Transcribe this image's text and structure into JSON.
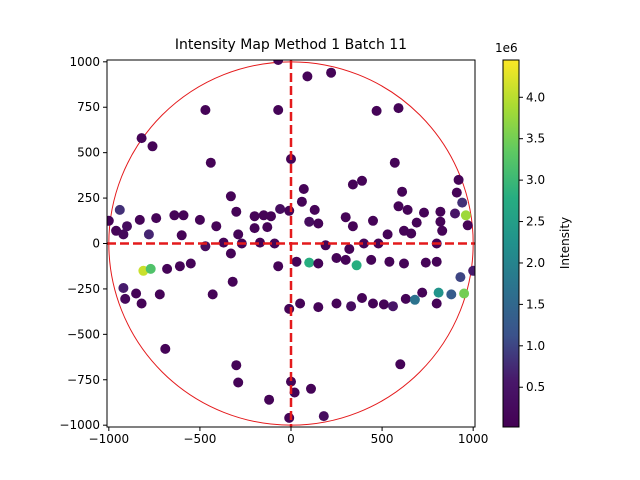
{
  "chart_data": {
    "type": "scatter",
    "title": "Intensity Map Method 1 Batch 11",
    "xlabel": "",
    "ylabel": "",
    "xlim": [
      -1010,
      1010
    ],
    "ylim": [
      -1010,
      1010
    ],
    "xticks": [
      -1000,
      -500,
      0,
      500,
      1000
    ],
    "yticks": [
      -1000,
      -750,
      -500,
      -250,
      0,
      250,
      500,
      750,
      1000
    ],
    "xtick_labels": [
      "−1000",
      "−500",
      "0",
      "500",
      "1000"
    ],
    "ytick_labels": [
      "−1000",
      "−750",
      "−500",
      "−250",
      "0",
      "250",
      "500",
      "750",
      "1000"
    ],
    "circle_radius": 1000,
    "circle_color": "#e41a1c",
    "crosshair_color": "#e41a1c",
    "colorbar": {
      "label": "Intensity",
      "exponent_label": "1e6",
      "min": 0.02,
      "max": 4.45,
      "ticks": [
        0.5,
        1.0,
        1.5,
        2.0,
        2.5,
        3.0,
        3.5,
        4.0
      ],
      "tick_labels": [
        "0.5",
        "1.0",
        "1.5",
        "2.0",
        "2.5",
        "3.0",
        "3.5",
        "4.0"
      ],
      "colormap": "viridis"
    },
    "points": [
      {
        "x": -1000,
        "y": 125,
        "v": 0.1
      },
      {
        "x": -960,
        "y": 70,
        "v": 0.1
      },
      {
        "x": -940,
        "y": 185,
        "v": 0.8
      },
      {
        "x": -920,
        "y": 50,
        "v": 0.2
      },
      {
        "x": -900,
        "y": 95,
        "v": 0.3
      },
      {
        "x": -830,
        "y": 130,
        "v": 0.1
      },
      {
        "x": -780,
        "y": 50,
        "v": 0.7
      },
      {
        "x": -740,
        "y": 140,
        "v": 0.1
      },
      {
        "x": -640,
        "y": 155,
        "v": 0.1
      },
      {
        "x": -590,
        "y": 155,
        "v": 0.1
      },
      {
        "x": -600,
        "y": 45,
        "v": 0.1
      },
      {
        "x": -500,
        "y": 130,
        "v": 0.1
      },
      {
        "x": -470,
        "y": -15,
        "v": 0.3
      },
      {
        "x": -410,
        "y": 95,
        "v": 0.1
      },
      {
        "x": -370,
        "y": 5,
        "v": 0.1
      },
      {
        "x": -330,
        "y": 260,
        "v": 0.1
      },
      {
        "x": -300,
        "y": 175,
        "v": 0.1
      },
      {
        "x": -290,
        "y": 50,
        "v": 0.1
      },
      {
        "x": -270,
        "y": 0,
        "v": 0.1
      },
      {
        "x": -200,
        "y": 150,
        "v": 0.1
      },
      {
        "x": -170,
        "y": 5,
        "v": 0.1
      },
      {
        "x": -150,
        "y": 155,
        "v": 0.1
      },
      {
        "x": -110,
        "y": 150,
        "v": 0.1
      },
      {
        "x": -90,
        "y": 0,
        "v": 0.1
      },
      {
        "x": -60,
        "y": 190,
        "v": 0.3
      },
      {
        "x": -130,
        "y": 90,
        "v": 0.1
      },
      {
        "x": -200,
        "y": 85,
        "v": 0.1
      },
      {
        "x": -330,
        "y": -55,
        "v": 0.1
      },
      {
        "x": -10,
        "y": 180,
        "v": 0.1
      },
      {
        "x": 60,
        "y": 230,
        "v": 0.1
      },
      {
        "x": 70,
        "y": 300,
        "v": 0.1
      },
      {
        "x": 100,
        "y": 120,
        "v": 0.3
      },
      {
        "x": 130,
        "y": 185,
        "v": 0.1
      },
      {
        "x": 150,
        "y": 110,
        "v": 0.1
      },
      {
        "x": 190,
        "y": -10,
        "v": 0.1
      },
      {
        "x": 300,
        "y": 145,
        "v": 0.1
      },
      {
        "x": 320,
        "y": -30,
        "v": 0.1
      },
      {
        "x": 340,
        "y": 95,
        "v": 0.1
      },
      {
        "x": 340,
        "y": 325,
        "v": 0.1
      },
      {
        "x": 390,
        "y": 345,
        "v": 0.1
      },
      {
        "x": 400,
        "y": 0,
        "v": 0.1
      },
      {
        "x": 450,
        "y": 125,
        "v": 0.1
      },
      {
        "x": 480,
        "y": 0,
        "v": 0.1
      },
      {
        "x": 530,
        "y": 50,
        "v": 0.1
      },
      {
        "x": 570,
        "y": 445,
        "v": 0.1
      },
      {
        "x": 590,
        "y": 205,
        "v": 0.1
      },
      {
        "x": 610,
        "y": 285,
        "v": 0.1
      },
      {
        "x": 620,
        "y": 70,
        "v": 0.1
      },
      {
        "x": 640,
        "y": 185,
        "v": 0.1
      },
      {
        "x": 660,
        "y": 55,
        "v": 0.1
      },
      {
        "x": 690,
        "y": 115,
        "v": 0.1
      },
      {
        "x": 730,
        "y": 170,
        "v": 0.1
      },
      {
        "x": 800,
        "y": 0,
        "v": 0.1
      },
      {
        "x": 820,
        "y": 175,
        "v": 0.1
      },
      {
        "x": 820,
        "y": 120,
        "v": 0.1
      },
      {
        "x": 830,
        "y": 70,
        "v": 0.1
      },
      {
        "x": 900,
        "y": 165,
        "v": 0.5
      },
      {
        "x": 910,
        "y": 280,
        "v": 0.1
      },
      {
        "x": 920,
        "y": 350,
        "v": 0.1
      },
      {
        "x": 940,
        "y": 225,
        "v": 0.8
      },
      {
        "x": 960,
        "y": 155,
        "v": 3.8
      },
      {
        "x": 970,
        "y": 100,
        "v": 0.1
      },
      {
        "x": -810,
        "y": -150,
        "v": 4.1
      },
      {
        "x": -770,
        "y": -140,
        "v": 3.2
      },
      {
        "x": -920,
        "y": -245,
        "v": 0.6
      },
      {
        "x": -910,
        "y": -305,
        "v": 0.2
      },
      {
        "x": -850,
        "y": -275,
        "v": 0.1
      },
      {
        "x": -820,
        "y": -330,
        "v": 0.1
      },
      {
        "x": -720,
        "y": -280,
        "v": 0.1
      },
      {
        "x": -680,
        "y": -140,
        "v": 0.1
      },
      {
        "x": -610,
        "y": -125,
        "v": 0.1
      },
      {
        "x": -550,
        "y": -110,
        "v": 0.1
      },
      {
        "x": -430,
        "y": -280,
        "v": 0.1
      },
      {
        "x": -320,
        "y": -210,
        "v": 0.1
      },
      {
        "x": -690,
        "y": -580,
        "v": 0.1
      },
      {
        "x": -300,
        "y": -670,
        "v": 0.1
      },
      {
        "x": -290,
        "y": -765,
        "v": 0.1
      },
      {
        "x": -120,
        "y": -860,
        "v": 0.1
      },
      {
        "x": -70,
        "y": -125,
        "v": 0.1
      },
      {
        "x": -10,
        "y": -360,
        "v": 0.1
      },
      {
        "x": 30,
        "y": -100,
        "v": 0.1
      },
      {
        "x": 50,
        "y": -330,
        "v": 0.1
      },
      {
        "x": 100,
        "y": -105,
        "v": 2.8
      },
      {
        "x": 150,
        "y": -110,
        "v": 0.1
      },
      {
        "x": 150,
        "y": -350,
        "v": 0.1
      },
      {
        "x": 250,
        "y": -80,
        "v": 0.1
      },
      {
        "x": 250,
        "y": -330,
        "v": 0.1
      },
      {
        "x": 300,
        "y": -90,
        "v": 0.1
      },
      {
        "x": 330,
        "y": -345,
        "v": 0.3
      },
      {
        "x": 360,
        "y": -120,
        "v": 2.8
      },
      {
        "x": 390,
        "y": -300,
        "v": 0.1
      },
      {
        "x": 440,
        "y": -90,
        "v": 0.1
      },
      {
        "x": 450,
        "y": -330,
        "v": 0.1
      },
      {
        "x": 510,
        "y": -335,
        "v": 0.1
      },
      {
        "x": 540,
        "y": -100,
        "v": 0.1
      },
      {
        "x": 560,
        "y": -345,
        "v": 0.5
      },
      {
        "x": 620,
        "y": -110,
        "v": 0.1
      },
      {
        "x": 630,
        "y": -305,
        "v": 0.1
      },
      {
        "x": 680,
        "y": -310,
        "v": 1.7
      },
      {
        "x": 720,
        "y": -270,
        "v": 0.1
      },
      {
        "x": 740,
        "y": -105,
        "v": 0.1
      },
      {
        "x": 800,
        "y": -100,
        "v": 0.1
      },
      {
        "x": 800,
        "y": -330,
        "v": 0.1
      },
      {
        "x": 810,
        "y": -270,
        "v": 2.3
      },
      {
        "x": 880,
        "y": -280,
        "v": 1.3
      },
      {
        "x": 930,
        "y": -185,
        "v": 1.0
      },
      {
        "x": 950,
        "y": -275,
        "v": 3.5
      },
      {
        "x": 1000,
        "y": -150,
        "v": 0.6
      },
      {
        "x": 600,
        "y": -665,
        "v": 0.1
      },
      {
        "x": 0,
        "y": -760,
        "v": 0.1
      },
      {
        "x": 20,
        "y": -820,
        "v": 0.1
      },
      {
        "x": 110,
        "y": -800,
        "v": 0.1
      },
      {
        "x": -10,
        "y": -960,
        "v": 0.1
      },
      {
        "x": 180,
        "y": -950,
        "v": 0.3
      },
      {
        "x": 0,
        "y": 465,
        "v": 0.1
      },
      {
        "x": -470,
        "y": 735,
        "v": 0.1
      },
      {
        "x": -440,
        "y": 445,
        "v": 0.1
      },
      {
        "x": -820,
        "y": 580,
        "v": 0.1
      },
      {
        "x": -760,
        "y": 535,
        "v": 0.1
      },
      {
        "x": -70,
        "y": 735,
        "v": 0.1
      },
      {
        "x": -70,
        "y": 1010,
        "v": 0.1
      },
      {
        "x": 90,
        "y": 920,
        "v": 0.1
      },
      {
        "x": 220,
        "y": 940,
        "v": 0.1
      },
      {
        "x": 470,
        "y": 730,
        "v": 0.1
      },
      {
        "x": 590,
        "y": 745,
        "v": 0.1
      }
    ]
  }
}
